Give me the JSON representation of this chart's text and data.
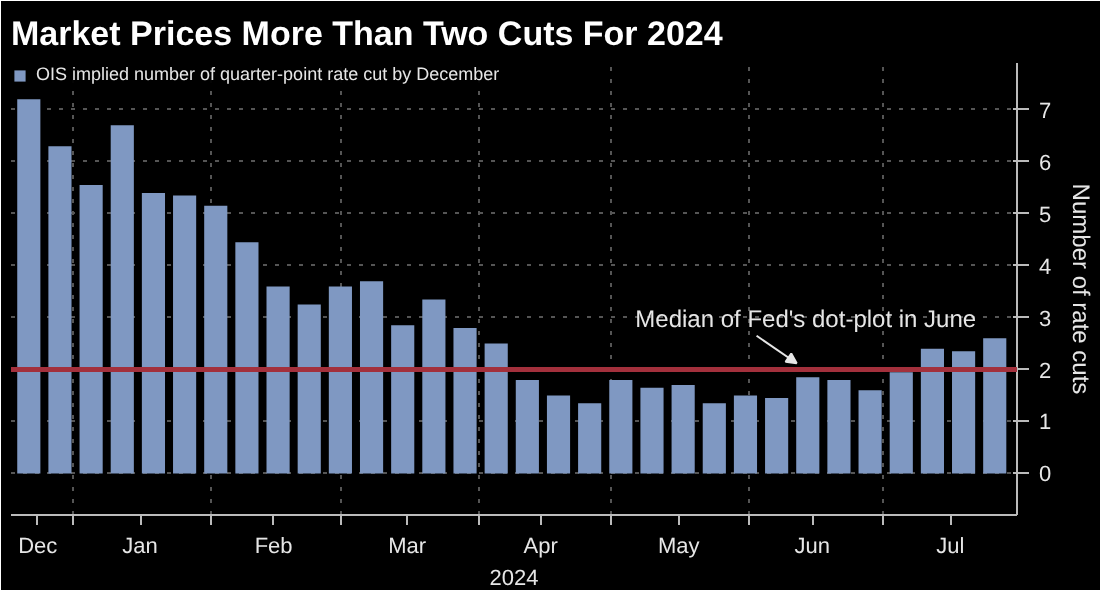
{
  "chart_data": {
    "type": "bar",
    "title": "Market Prices More Than Two Cuts For 2024",
    "xlabel": "2024",
    "ylabel": "Number of rate cuts",
    "x": [
      "2023-12-22",
      "2023-12-29",
      "2024-01-05",
      "2024-01-12",
      "2024-01-19",
      "2024-01-26",
      "2024-02-02",
      "2024-02-09",
      "2024-02-16",
      "2024-02-23",
      "2024-03-01",
      "2024-03-08",
      "2024-03-15",
      "2024-03-22",
      "2024-03-29",
      "2024-04-05",
      "2024-04-12",
      "2024-04-19",
      "2024-04-26",
      "2024-05-03",
      "2024-05-10",
      "2024-05-17",
      "2024-05-24",
      "2024-05-31",
      "2024-06-07",
      "2024-06-14",
      "2024-06-21",
      "2024-06-28",
      "2024-07-05",
      "2024-07-12",
      "2024-07-19",
      "2024-07-26"
    ],
    "series": [
      {
        "name": "OIS implied number of quarter-point rate cut by December",
        "color": "#7f98c2",
        "values": [
          7.2,
          6.3,
          5.55,
          6.7,
          5.4,
          5.35,
          5.15,
          4.45,
          3.6,
          3.25,
          3.6,
          3.7,
          2.85,
          3.35,
          2.8,
          2.5,
          1.8,
          1.5,
          1.35,
          1.8,
          1.65,
          1.7,
          1.35,
          1.5,
          1.45,
          1.85,
          1.8,
          1.6,
          1.95,
          2.4,
          2.35,
          2.6
        ]
      }
    ],
    "xlim": [
      "2023-12-18",
      "2024-07-31"
    ],
    "xticks": [
      {
        "value": "2023-12-24",
        "label": "Dec"
      },
      {
        "value": "2024-01-01",
        "label": null
      },
      {
        "value": "2024-01-16",
        "label": "Jan"
      },
      {
        "value": "2024-02-01",
        "label": null
      },
      {
        "value": "2024-02-15",
        "label": "Feb"
      },
      {
        "value": "2024-03-01",
        "label": null
      },
      {
        "value": "2024-03-16",
        "label": "Mar"
      },
      {
        "value": "2024-04-01",
        "label": null
      },
      {
        "value": "2024-04-15",
        "label": "Apr"
      },
      {
        "value": "2024-05-01",
        "label": null
      },
      {
        "value": "2024-05-16",
        "label": "May"
      },
      {
        "value": "2024-06-01",
        "label": null
      },
      {
        "value": "2024-06-15",
        "label": "Jun"
      },
      {
        "value": "2024-07-01",
        "label": null
      },
      {
        "value": "2024-07-16",
        "label": "Jul"
      }
    ],
    "ylim": [
      -0.8,
      7.9
    ],
    "yticks": [
      0,
      1,
      2,
      3,
      4,
      5,
      6,
      7
    ],
    "ref_lines": [
      {
        "axis": "y",
        "value": 2,
        "label": "Median of Fed's dot-plot in June",
        "color": "#a3303c"
      }
    ],
    "grid": true,
    "legend": "top left"
  }
}
